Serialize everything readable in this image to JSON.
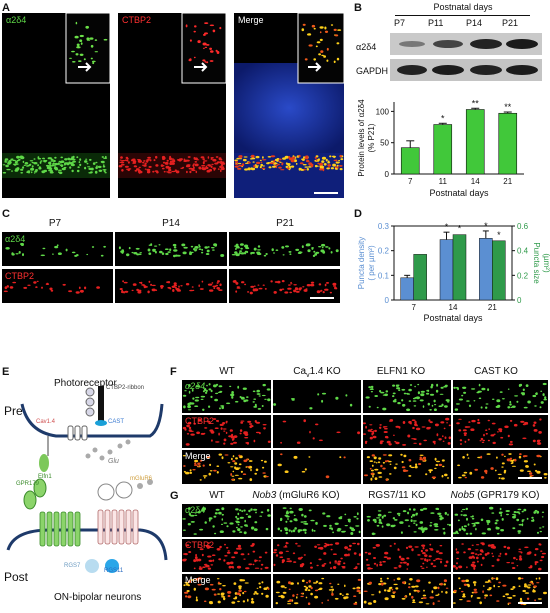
{
  "panel_letters": {
    "a": "A",
    "b": "B",
    "c": "C",
    "d": "D",
    "e": "E",
    "f": "F",
    "g": "G"
  },
  "panelA": {
    "ch1": "α2δ4",
    "ch2": "CTBP2",
    "ch3": "Merge"
  },
  "panelB": {
    "header": "Postnatal days",
    "lanes": [
      "P7",
      "P11",
      "P14",
      "P21"
    ],
    "row1": "α2δ4",
    "row2": "GAPDH",
    "ylabel": "Protein levels of α2δ4 (% P21)",
    "xlabel": "Postnatal days",
    "yticks": [
      "0",
      "50",
      "100"
    ],
    "bar_color": "#41c83a"
  },
  "panelC": {
    "cols": [
      "P7",
      "P14",
      "P21"
    ],
    "row1": "α2δ4",
    "row2": "CTBP2"
  },
  "panelD": {
    "ylabel_left": "Puncta density ( per µm²)",
    "ylabel_right": "Puncta size (µm²)",
    "xlabel": "Postnatal days",
    "yticks_left": [
      "0",
      "0.1",
      "0.2",
      "0.3"
    ],
    "yticks_right": [
      "0",
      "0.2",
      "0.4",
      "0.6"
    ],
    "blue": "#5b8fd2",
    "green": "#2f9a4a"
  },
  "panelE": {
    "photoreceptor": "Photoreceptor",
    "pre": "Pre",
    "post": "Post",
    "ctbp2": "CTBP2-ribbon",
    "cav": "Cav1.4",
    "cast": "CAST",
    "elfn1": "Elfn1",
    "glu": "Glu",
    "gpr179": "GPR179",
    "mglur6": "mGluR6",
    "rgs7": "RGS7",
    "rgs11": "RGS11",
    "onbipolar": "ON-bipolar neurons"
  },
  "panelF": {
    "cols": [
      "WT",
      "Ca",
      "1.4 KO",
      "ELFN1 KO",
      "CAST KO"
    ],
    "sub": "v",
    "rows": [
      "α2δ4",
      "CTBP2",
      "Merge"
    ]
  },
  "panelG": {
    "col1": "WT",
    "col2a": "Nob3",
    "col2b": " (mGluR6 KO)",
    "col3": "RGS7/11 KO",
    "col4a": "Nob5",
    "col4b": " (GPR179 KO)",
    "rows": [
      "α2δ4",
      "CTBP2",
      "Merge"
    ]
  },
  "chart_data": [
    {
      "type": "bar",
      "categories": [
        "7",
        "11",
        "14",
        "21"
      ],
      "values": [
        42,
        79,
        103,
        97
      ],
      "errors": [
        11,
        2,
        2,
        2
      ],
      "sig": [
        "",
        "*",
        "**",
        "**"
      ],
      "xlabel": "Postnatal days",
      "ylabel": "Protein levels of α2δ4 (% P21)",
      "ylim": [
        0,
        115
      ]
    },
    {
      "type": "bar",
      "categories": [
        "7",
        "14",
        "21"
      ],
      "series": [
        {
          "name": "Puncta density",
          "axis": "left",
          "values": [
            0.09,
            0.245,
            0.25
          ],
          "errors": [
            0.01,
            0.03,
            0.03
          ],
          "sig": [
            "",
            "*",
            "*"
          ]
        },
        {
          "name": "Puncta size",
          "axis": "right",
          "values": [
            0.37,
            0.53,
            0.48
          ],
          "sig": [
            "",
            "*",
            "*"
          ]
        }
      ],
      "ylim_left": [
        0,
        0.3
      ],
      "ylim_right": [
        0,
        0.6
      ],
      "xlabel": "Postnatal days"
    }
  ]
}
